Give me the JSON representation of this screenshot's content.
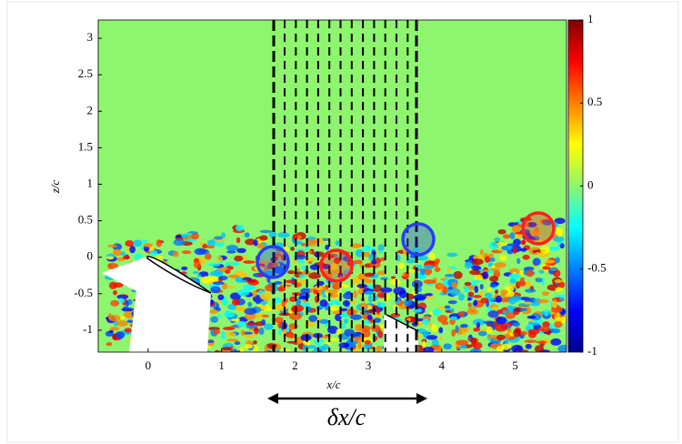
{
  "chart_data": {
    "type": "heatmap",
    "xlabel": "x/c",
    "ylabel": "z/c",
    "annotation": "δx/c",
    "xlim": [
      -0.68,
      5.7
    ],
    "ylim": [
      -1.3,
      3.25
    ],
    "xticks": [
      0,
      1,
      2,
      3,
      4,
      5
    ],
    "yticks": [
      3,
      2.5,
      2,
      1.5,
      1,
      0.5,
      0,
      -0.5,
      -1
    ],
    "colorbar": {
      "lim": [
        -1,
        1
      ],
      "ticks": [
        1,
        0.5,
        0,
        -0.5,
        -1
      ]
    },
    "colormap": "jet",
    "background": "#8ef56e"
  }
}
